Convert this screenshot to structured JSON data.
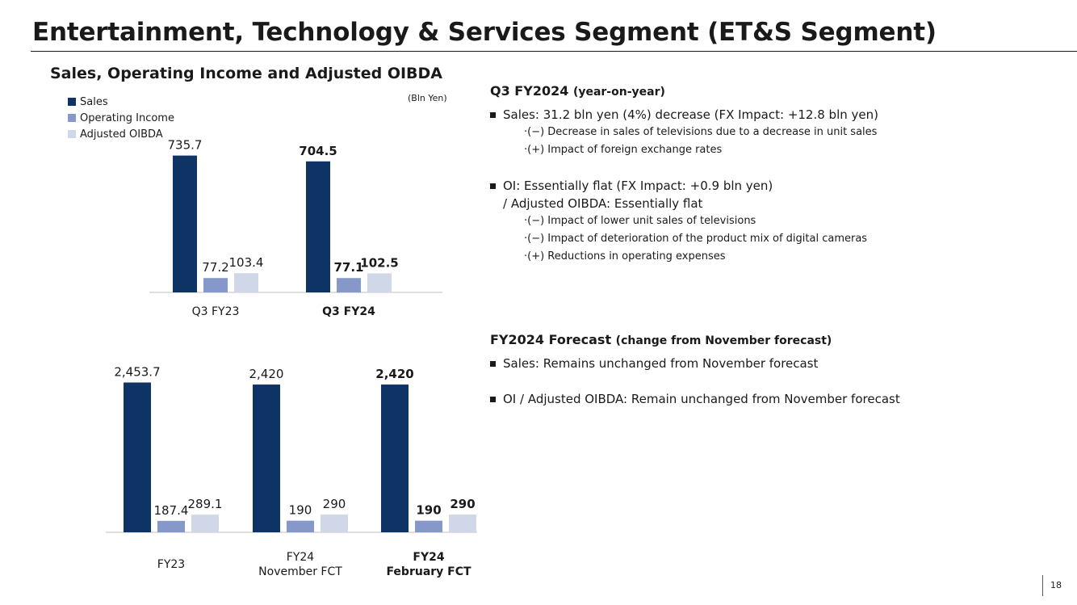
{
  "slide": {
    "title": "Entertainment, Technology & Services Segment (ET&S Segment)",
    "page_number": "18"
  },
  "left_panel": {
    "heading": "Sales, Operating Income and Adjusted OIBDA",
    "unit_label": "(Bln Yen)",
    "legend": [
      {
        "label": "Sales",
        "color": "#0d3464"
      },
      {
        "label": "Operating Income",
        "color": "#8698c9"
      },
      {
        "label": "Adjusted OIBDA",
        "color": "#cfd7e8"
      }
    ]
  },
  "chart_data": [
    {
      "type": "bar",
      "title": "Sales, Operating Income and Adjusted OIBDA (Q3)",
      "unit": "Bln Yen",
      "categories": [
        "Q3 FY23",
        "Q3 FY24"
      ],
      "category_bold": [
        false,
        true
      ],
      "series": [
        {
          "name": "Sales",
          "values": [
            735.7,
            704.5
          ],
          "labels": [
            "735.7",
            "704.5"
          ]
        },
        {
          "name": "Operating Income",
          "values": [
            77.2,
            77.1
          ],
          "labels": [
            "77.2",
            "77.1"
          ]
        },
        {
          "name": "Adjusted OIBDA",
          "values": [
            103.4,
            102.5
          ],
          "labels": [
            "103.4",
            "102.5"
          ]
        }
      ],
      "ylim": [
        0,
        760
      ]
    },
    {
      "type": "bar",
      "title": "Sales, Operating Income and Adjusted OIBDA (Full Year)",
      "unit": "Bln Yen",
      "categories": [
        "FY23",
        "FY24\nNovember FCT",
        "FY24\nFebruary FCT"
      ],
      "category_bold": [
        false,
        false,
        true
      ],
      "series": [
        {
          "name": "Sales",
          "values": [
            2453.7,
            2420,
            2420
          ],
          "labels": [
            "2,453.7",
            "2,420",
            "2,420"
          ]
        },
        {
          "name": "Operating Income",
          "values": [
            187.4,
            190,
            190
          ],
          "labels": [
            "187.4",
            "190",
            "190"
          ]
        },
        {
          "name": "Adjusted OIBDA",
          "values": [
            289.1,
            290,
            290
          ],
          "labels": [
            "289.1",
            "290",
            "290"
          ]
        }
      ],
      "ylim": [
        0,
        2540
      ]
    }
  ],
  "q3_section": {
    "heading_main": "Q3 FY2024",
    "heading_sub": "(year-on-year)",
    "sales_bullet": "Sales: 31.2 bln yen (4%) decrease (FX Impact: +12.8 bln yen)",
    "sales_items": [
      "·(−) Decrease in sales of televisions due to a decrease in unit sales",
      "·(+) Impact of foreign exchange rates"
    ],
    "oi_bullet": "OI: Essentially flat (FX Impact: +0.9 bln yen)",
    "oi_line2": "/ Adjusted OIBDA: Essentially flat",
    "oi_items": [
      "·(−) Impact of lower unit sales of televisions",
      "·(−) Impact of deterioration of the product mix of digital cameras",
      "·(+) Reductions in operating expenses"
    ]
  },
  "forecast_section": {
    "heading_main": "FY2024 Forecast",
    "heading_sub": "(change from November forecast)",
    "sales_bullet": "Sales: Remains unchanged from November forecast",
    "oi_bullet": "OI / Adjusted OIBDA: Remain unchanged from November forecast"
  }
}
